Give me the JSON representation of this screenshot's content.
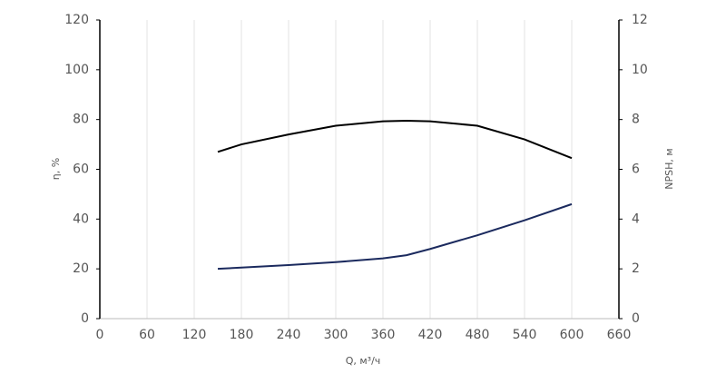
{
  "chart_data": {
    "type": "line",
    "x_label": "Q, м³/ч",
    "y_label": "η, %",
    "y2_label": "NPSH, м",
    "x": [
      150,
      180,
      240,
      300,
      360,
      390,
      420,
      480,
      540,
      600
    ],
    "series": [
      {
        "name": "η",
        "color": "#000000",
        "values": [
          67,
          70,
          74,
          77.5,
          79.3,
          79.5,
          79.3,
          77.5,
          72,
          64.5
        ]
      },
      {
        "name": "NPSH",
        "color": "#1b2a5e",
        "axis": "y2",
        "values": [
          2.0,
          2.05,
          2.15,
          2.27,
          2.42,
          2.55,
          2.8,
          3.35,
          3.95,
          4.6
        ]
      }
    ],
    "xlim": [
      0,
      660
    ],
    "xticks": [
      0,
      60,
      120,
      180,
      240,
      300,
      360,
      420,
      480,
      540,
      600,
      660
    ],
    "ylim": [
      0,
      120
    ],
    "yticks": [
      0,
      20,
      40,
      60,
      80,
      100,
      120
    ],
    "y2lim": [
      0,
      12
    ],
    "y2ticks": [
      0,
      2,
      4,
      6,
      8,
      10,
      12
    ],
    "grid": true
  }
}
